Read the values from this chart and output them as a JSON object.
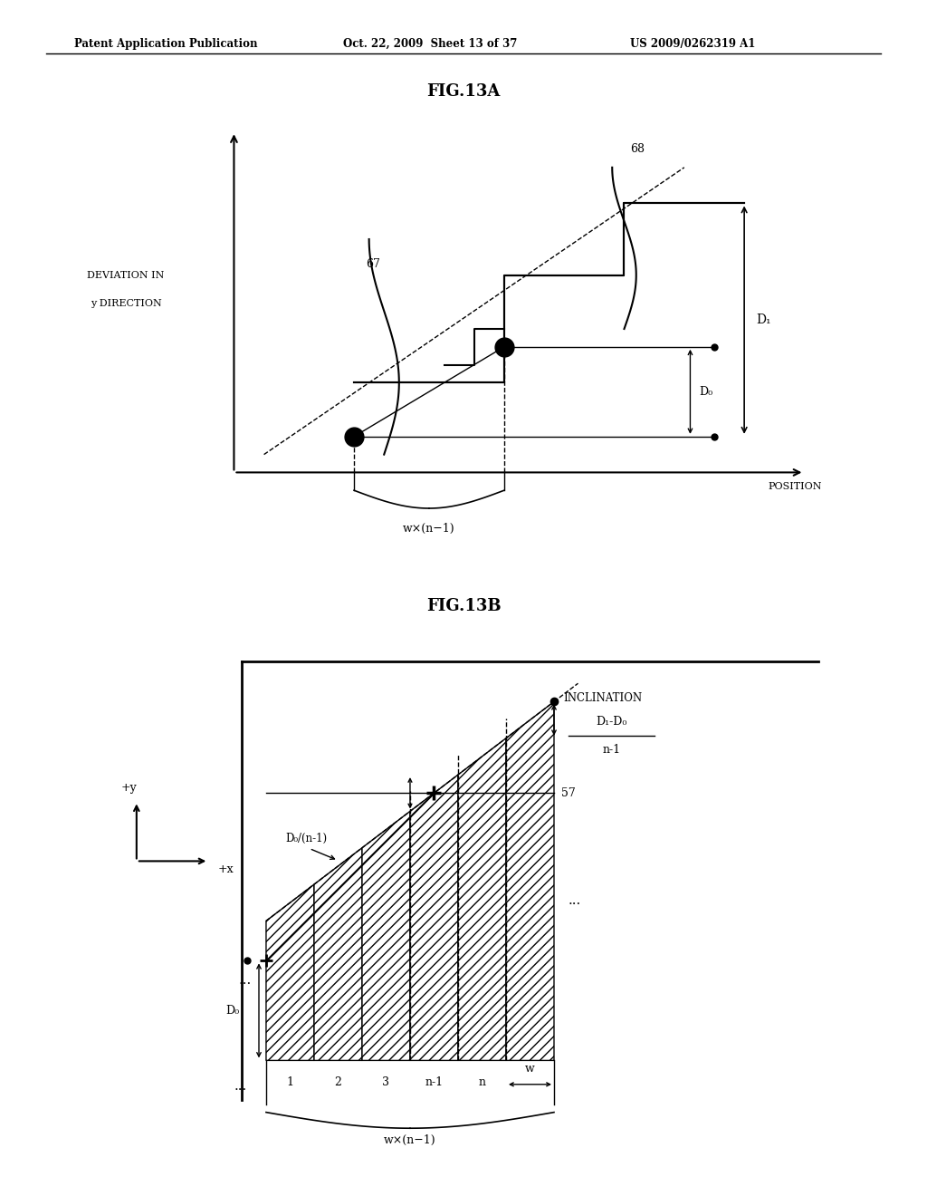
{
  "header_left": "Patent Application Publication",
  "header_mid": "Oct. 22, 2009  Sheet 13 of 37",
  "header_right": "US 2009/0262319 A1",
  "fig13a_title": "FIG.13A",
  "fig13b_title": "FIG.13B",
  "bg_color": "#ffffff",
  "line_color": "#000000"
}
